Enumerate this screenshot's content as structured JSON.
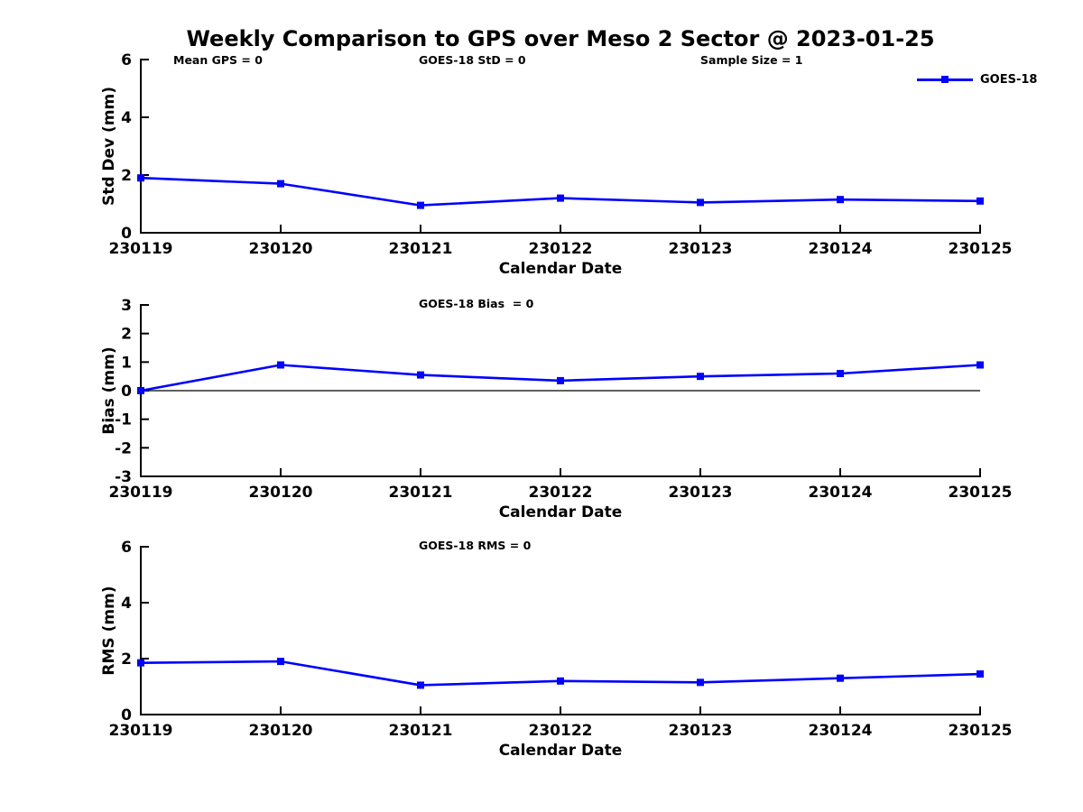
{
  "figure": {
    "title": "Weekly Comparison to GPS over Meso 2 Sector @ 2023-01-25",
    "legend": {
      "label": "GOES-18",
      "color": "#0000ff",
      "marker": "square"
    }
  },
  "colors": {
    "series_blue": "#0000ff",
    "axis_black": "#000000",
    "background": "#ffffff"
  },
  "chart_data": [
    {
      "type": "line",
      "ylabel": "Std Dev (mm)",
      "xlabel": "Calendar Date",
      "categories": [
        "230119",
        "230120",
        "230121",
        "230122",
        "230123",
        "230124",
        "230125"
      ],
      "series": [
        {
          "name": "GOES-18",
          "color": "#0000ff",
          "marker": "square",
          "values": [
            1.9,
            1.7,
            0.95,
            1.2,
            1.05,
            1.15,
            1.1
          ]
        }
      ],
      "ylim": [
        0,
        6
      ],
      "yticks": [
        0,
        2,
        4,
        6
      ],
      "grid": false,
      "zero_line": false,
      "legend_position": "top-right-outside",
      "annotations": [
        "Mean GPS = 0",
        "GOES-18 StD = 0",
        "Sample Size = 1"
      ]
    },
    {
      "type": "line",
      "ylabel": "Bias (mm)",
      "xlabel": "Calendar Date",
      "categories": [
        "230119",
        "230120",
        "230121",
        "230122",
        "230123",
        "230124",
        "230125"
      ],
      "series": [
        {
          "name": "GOES-18",
          "color": "#0000ff",
          "marker": "square",
          "values": [
            0.0,
            0.9,
            0.55,
            0.35,
            0.5,
            0.6,
            0.9
          ]
        }
      ],
      "ylim": [
        -3,
        3
      ],
      "yticks": [
        -3,
        -2,
        -1,
        0,
        1,
        2,
        3
      ],
      "grid": false,
      "zero_line": true,
      "annotations": [
        "GOES-18 Bias  = 0"
      ]
    },
    {
      "type": "line",
      "ylabel": "RMS (mm)",
      "xlabel": "Calendar Date",
      "categories": [
        "230119",
        "230120",
        "230121",
        "230122",
        "230123",
        "230124",
        "230125"
      ],
      "series": [
        {
          "name": "GOES-18",
          "color": "#0000ff",
          "marker": "square",
          "values": [
            1.85,
            1.9,
            1.05,
            1.2,
            1.15,
            1.3,
            1.45
          ]
        }
      ],
      "ylim": [
        0,
        6
      ],
      "yticks": [
        0,
        2,
        4,
        6
      ],
      "grid": false,
      "zero_line": false,
      "annotations": [
        "GOES-18 RMS = 0"
      ]
    }
  ]
}
